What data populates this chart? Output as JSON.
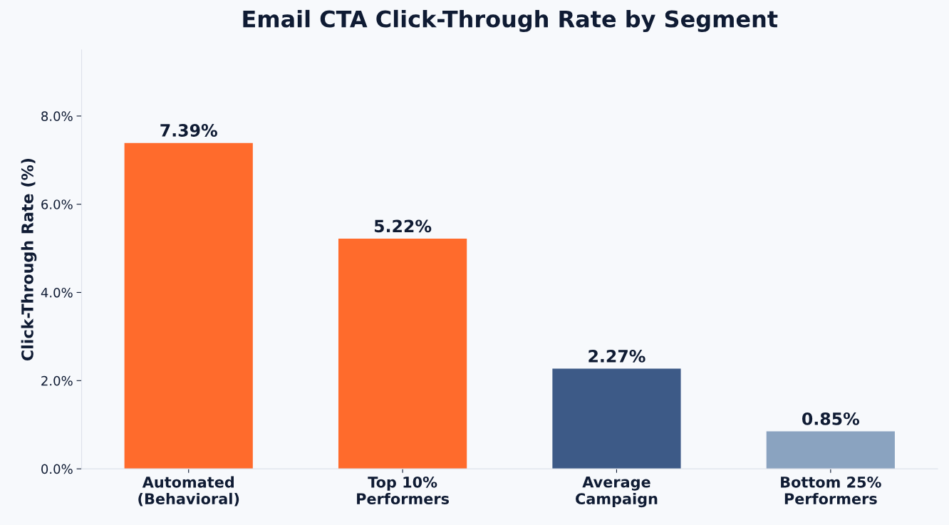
{
  "chart_data": {
    "type": "bar",
    "title": "Email CTA Click-Through Rate by Segment",
    "ylabel": "Click-Through Rate (%)",
    "categories": [
      "Automated\n(Behavioral)",
      "Top 10%\nPerformers",
      "Average\nCampaign",
      "Bottom 25%\nPerformers"
    ],
    "values": [
      7.39,
      5.22,
      2.27,
      0.85
    ],
    "colors": [
      "#ff6b2c",
      "#ff6b2c",
      "#3d5a87",
      "#8aa3c0"
    ],
    "value_labels": [
      "7.39%",
      "5.22%",
      "2.27%",
      "0.85%"
    ],
    "ylim": [
      0,
      9.5
    ],
    "yticks": [
      {
        "value": 0,
        "label": "0.0%"
      },
      {
        "value": 2,
        "label": "2.0%"
      },
      {
        "value": 4,
        "label": "4.0%"
      },
      {
        "value": 6,
        "label": "6.0%"
      },
      {
        "value": 8,
        "label": "8.0%"
      }
    ],
    "grid": false
  }
}
